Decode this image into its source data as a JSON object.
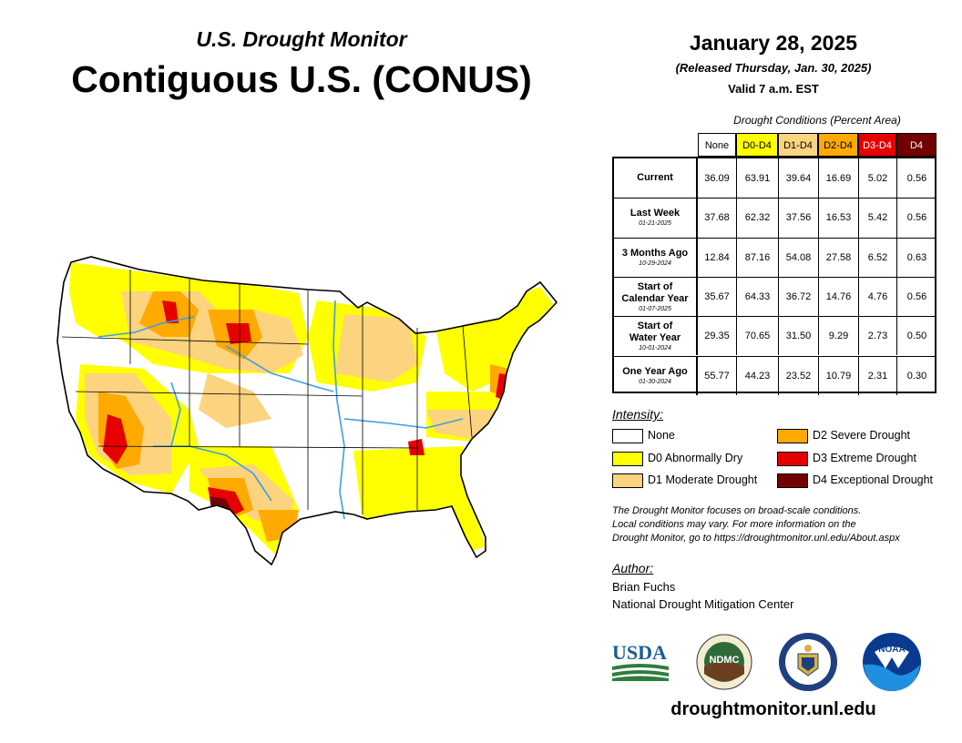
{
  "header": {
    "subtitle": "U.S. Drought Monitor",
    "title": "Contiguous U.S. (CONUS)",
    "date": "January 28, 2025",
    "released": "(Released Thursday, Jan. 30, 2025)",
    "valid": "Valid 7 a.m. EST"
  },
  "table": {
    "caption": "Drought Conditions (Percent Area)",
    "columns": [
      {
        "label": "None",
        "bg": "#ffffff",
        "fg": "#000000"
      },
      {
        "label": "D0-D4",
        "bg": "#ffff00",
        "fg": "#000000"
      },
      {
        "label": "D1-D4",
        "bg": "#fcd37f",
        "fg": "#000000"
      },
      {
        "label": "D2-D4",
        "bg": "#ffaa00",
        "fg": "#000000"
      },
      {
        "label": "D3-D4",
        "bg": "#e60000",
        "fg": "#ffffff"
      },
      {
        "label": "D4",
        "bg": "#730000",
        "fg": "#ffffff"
      }
    ],
    "rows": [
      {
        "label": [
          "Current"
        ],
        "date": "",
        "values": [
          "36.09",
          "63.91",
          "39.64",
          "16.69",
          "5.02",
          "0.56"
        ]
      },
      {
        "label": [
          "Last Week"
        ],
        "date": "01-21-2025",
        "values": [
          "37.68",
          "62.32",
          "37.56",
          "16.53",
          "5.42",
          "0.56"
        ]
      },
      {
        "label": [
          "3 Months Ago"
        ],
        "date": "10-29-2024",
        "values": [
          "12.84",
          "87.16",
          "54.08",
          "27.58",
          "6.52",
          "0.63"
        ]
      },
      {
        "label": [
          "Start of",
          "Calendar Year"
        ],
        "date": "01-07-2025",
        "values": [
          "35.67",
          "64.33",
          "36.72",
          "14.76",
          "4.76",
          "0.56"
        ]
      },
      {
        "label": [
          "Start of",
          "Water Year"
        ],
        "date": "10-01-2024",
        "values": [
          "29.35",
          "70.65",
          "31.50",
          "9.29",
          "2.73",
          "0.50"
        ]
      },
      {
        "label": [
          "One Year Ago"
        ],
        "date": "01-30-2024",
        "values": [
          "55.77",
          "44.23",
          "23.52",
          "10.79",
          "2.31",
          "0.30"
        ]
      }
    ]
  },
  "legend": {
    "title": "Intensity:",
    "items": [
      {
        "label": "None",
        "color": "#ffffff"
      },
      {
        "label": "D0 Abnormally Dry",
        "color": "#ffff00"
      },
      {
        "label": "D1 Moderate Drought",
        "color": "#fcd37f"
      },
      {
        "label": "D2 Severe Drought",
        "color": "#ffaa00"
      },
      {
        "label": "D3 Extreme Drought",
        "color": "#e60000"
      },
      {
        "label": "D4 Exceptional Drought",
        "color": "#730000"
      }
    ]
  },
  "note": {
    "line1": "The Drought Monitor focuses on broad-scale conditions.",
    "line2": "Local conditions may vary. For more information on the",
    "line3": "Drought Monitor, go to https://droughtmonitor.unl.edu/About.aspx"
  },
  "author": {
    "title": "Author:",
    "name": "Brian Fuchs",
    "org": "National Drought Mitigation Center"
  },
  "logos": {
    "usda": "USDA",
    "ndmc": "NDMC",
    "noaa": "NOAA"
  },
  "footer": {
    "url": "droughtmonitor.unl.edu"
  },
  "colors": {
    "none": "#ffffff",
    "d0": "#ffff00",
    "d1": "#fcd37f",
    "d2": "#ffaa00",
    "d3": "#e60000",
    "d4": "#730000",
    "rivers": "#3aa0e0"
  }
}
